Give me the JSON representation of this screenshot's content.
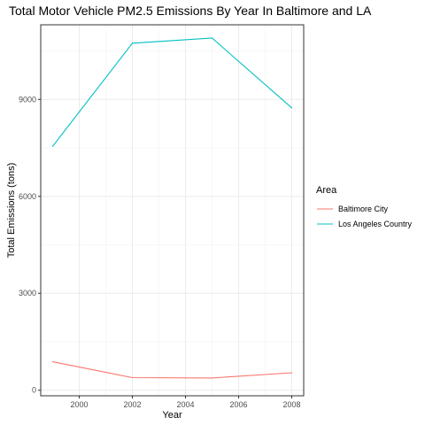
{
  "chart_data": {
    "type": "line",
    "title": "Total Motor Vehicle PM2.5 Emissions By Year In Baltimore and LA",
    "xlabel": "Year",
    "ylabel": "Total Emissions (tons)",
    "x": [
      1999,
      2002,
      2005,
      2008
    ],
    "xticks": [
      "2000",
      "2002",
      "2004",
      "2006",
      "2008"
    ],
    "yticks": [
      "0",
      "3000",
      "6000",
      "9000"
    ],
    "xlim": [
      1998.55,
      2008.45
    ],
    "ylim": [
      -172,
      11310
    ],
    "grid": true,
    "legend": {
      "title": "Area",
      "placement": "right"
    },
    "series": [
      {
        "name": "Baltimore City",
        "color": "#f8766d",
        "values": [
          880,
          390,
          380,
          540
        ]
      },
      {
        "name": "Los Angeles Country",
        "color": "#00bfc4",
        "values": [
          7550,
          10740,
          10900,
          8740
        ]
      }
    ]
  }
}
